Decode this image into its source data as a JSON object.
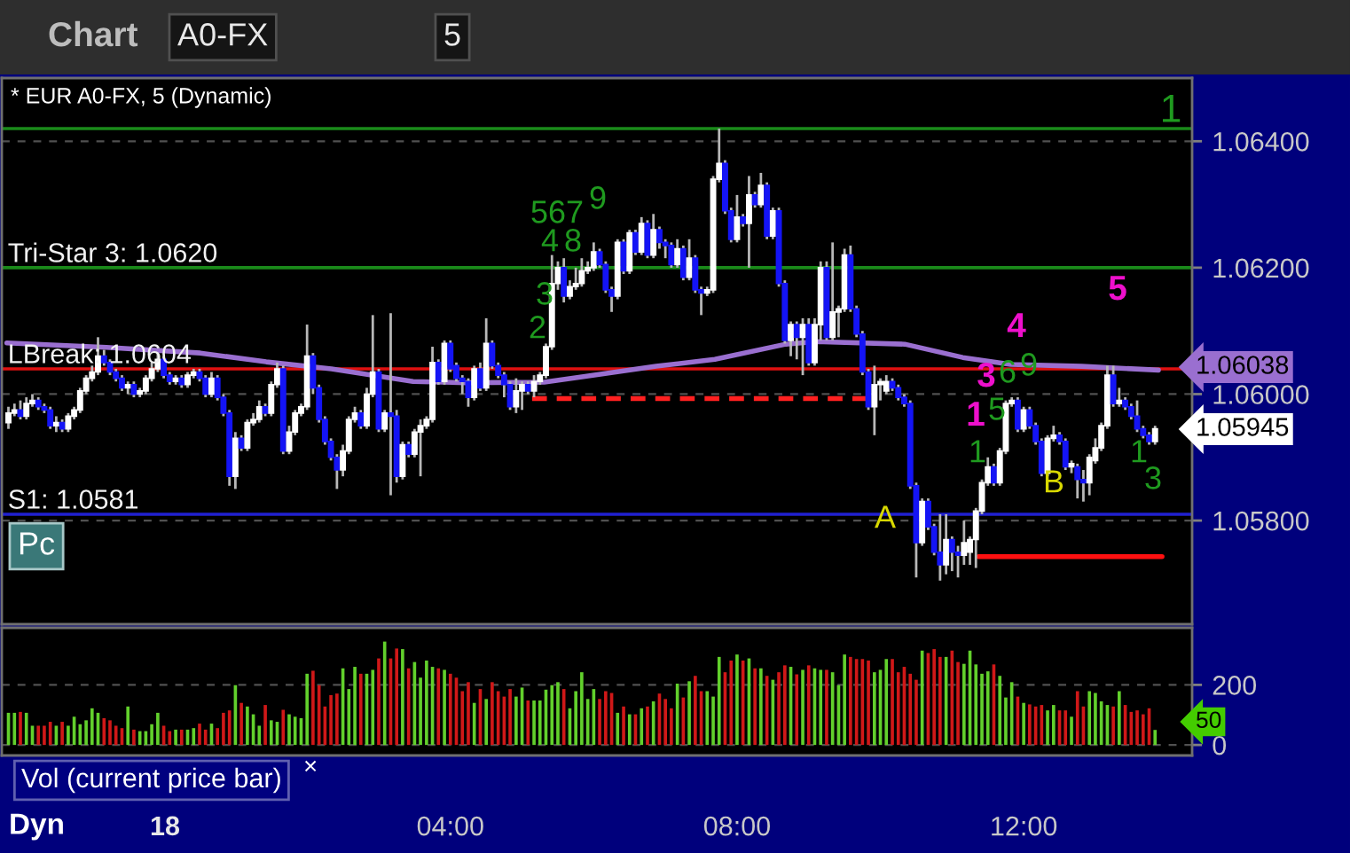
{
  "chart_data": [
    {
      "type": "candlestick",
      "title": "* EUR A0-FX, 5 (Dynamic)",
      "x": [
        -2.167,
        -2.083,
        -2,
        -1.917,
        -1.833,
        -1.75,
        -1.667,
        -1.583,
        -1.5,
        -1.417,
        -1.333,
        -1.25,
        -1.167,
        -1.083,
        -1,
        -0.917,
        -0.833,
        -0.75,
        -0.667,
        -0.583,
        -0.5,
        -0.417,
        -0.333,
        -0.25,
        -0.167,
        -0.083,
        0,
        0.083,
        0.167,
        0.25,
        0.333,
        0.417,
        0.5,
        0.583,
        0.667,
        0.75,
        0.833,
        0.917,
        1,
        1.083,
        1.167,
        1.25,
        1.333,
        1.417,
        1.5,
        1.583,
        1.667,
        1.75,
        1.833,
        1.917,
        2,
        2.083,
        2.167,
        2.25,
        2.333,
        2.417,
        2.5,
        2.583,
        2.667,
        2.75,
        2.833,
        2.917,
        3,
        3.083,
        3.167,
        3.25,
        3.333,
        3.417,
        3.5,
        3.583,
        3.667,
        3.75,
        3.833,
        3.917,
        4,
        4.083,
        4.167,
        4.25,
        4.333,
        4.417,
        4.5,
        4.583,
        4.667,
        4.75,
        4.833,
        4.917,
        5,
        5.083,
        5.167,
        5.25,
        5.333,
        5.417,
        5.5,
        5.583,
        5.667,
        5.75,
        5.833,
        5.917,
        6,
        6.083,
        6.167,
        6.25,
        6.333,
        6.417,
        6.5,
        6.583,
        6.667,
        6.75,
        6.833,
        6.917,
        7,
        7.083,
        7.167,
        7.25,
        7.333,
        7.417,
        7.5,
        7.583,
        7.667,
        7.75,
        7.833,
        7.917,
        8,
        8.083,
        8.167,
        8.25,
        8.333,
        8.417,
        8.5,
        8.583,
        8.667,
        8.75,
        8.833,
        8.917,
        9,
        9.083,
        9.167,
        9.25,
        9.333,
        9.417,
        9.5,
        9.583,
        9.667,
        9.75,
        9.833,
        9.917,
        10,
        10.083,
        10.167,
        10.25,
        10.333,
        10.417,
        10.5,
        10.583,
        10.667,
        10.75,
        10.833,
        10.917,
        11,
        11.083,
        11.167,
        11.25,
        11.333,
        11.417,
        11.5,
        11.583,
        11.667,
        11.75,
        11.833,
        11.917,
        12,
        12.083,
        12.167,
        12.25,
        12.333,
        12.417,
        12.5,
        12.583,
        12.667,
        12.75,
        12.833,
        12.917,
        13,
        13.083,
        13.167,
        13.25,
        13.333,
        13.417,
        13.5,
        13.583,
        13.667,
        13.75,
        13.833
      ],
      "ohlc": [
        [
          1.05955,
          1.0598,
          1.05945,
          1.0597
        ],
        [
          1.0597,
          1.05985,
          1.05965,
          1.05975
        ],
        [
          1.05975,
          1.0599,
          1.0596,
          1.05965
        ],
        [
          1.05965,
          1.05995,
          1.0596,
          1.05985
        ],
        [
          1.05985,
          1.06,
          1.0598,
          1.0599
        ],
        [
          1.0599,
          1.05995,
          1.05975,
          1.0598
        ],
        [
          1.0598,
          1.05985,
          1.0597,
          1.05975
        ],
        [
          1.05975,
          1.0598,
          1.05945,
          1.0595
        ],
        [
          1.0595,
          1.05965,
          1.0594,
          1.05955
        ],
        [
          1.05955,
          1.0596,
          1.0594,
          1.05945
        ],
        [
          1.05945,
          1.0597,
          1.0594,
          1.05965
        ],
        [
          1.05965,
          1.0598,
          1.0596,
          1.05975
        ],
        [
          1.05975,
          1.0601,
          1.0597,
          1.06005
        ],
        [
          1.06005,
          1.0603,
          1.06,
          1.06025
        ],
        [
          1.06025,
          1.06045,
          1.0602,
          1.06035
        ],
        [
          1.06035,
          1.0609,
          1.0603,
          1.0606
        ],
        [
          1.0606,
          1.0607,
          1.06045,
          1.0605
        ],
        [
          1.0605,
          1.06055,
          1.0603,
          1.06035
        ],
        [
          1.06035,
          1.0604,
          1.0602,
          1.06025
        ],
        [
          1.06025,
          1.0603,
          1.06005,
          1.0601
        ],
        [
          1.0601,
          1.0602,
          1.06,
          1.06015
        ],
        [
          1.06015,
          1.0602,
          1.05995,
          1.06
        ],
        [
          1.06,
          1.0601,
          1.05995,
          1.06005
        ],
        [
          1.06005,
          1.0603,
          1.06,
          1.06025
        ],
        [
          1.06025,
          1.0605,
          1.0602,
          1.0604
        ],
        [
          1.0604,
          1.06065,
          1.06035,
          1.06055
        ],
        [
          1.06055,
          1.0606,
          1.06025,
          1.0603
        ],
        [
          1.0603,
          1.06035,
          1.06015,
          1.0602
        ],
        [
          1.0602,
          1.0603,
          1.06015,
          1.06025
        ],
        [
          1.06025,
          1.0603,
          1.0601,
          1.06015
        ],
        [
          1.06015,
          1.06035,
          1.0601,
          1.0603
        ],
        [
          1.0603,
          1.0604,
          1.06025,
          1.06035
        ],
        [
          1.06035,
          1.0604,
          1.0602,
          1.06025
        ],
        [
          1.06025,
          1.0603,
          1.05995,
          1.06
        ],
        [
          1.06,
          1.06035,
          1.05995,
          1.06025
        ],
        [
          1.06025,
          1.0603,
          1.0599,
          1.05995
        ],
        [
          1.05995,
          1.06,
          1.05965,
          1.0597
        ],
        [
          1.0597,
          1.05975,
          1.05855,
          1.0587
        ],
        [
          1.0587,
          1.0594,
          1.0585,
          1.0593
        ],
        [
          1.0593,
          1.05935,
          1.0591,
          1.05915
        ],
        [
          1.05915,
          1.0596,
          1.0591,
          1.05955
        ],
        [
          1.05955,
          1.0597,
          1.0595,
          1.0596
        ],
        [
          1.0596,
          1.0599,
          1.05955,
          1.0598
        ],
        [
          1.0598,
          1.05985,
          1.05965,
          1.0597
        ],
        [
          1.0597,
          1.0602,
          1.05965,
          1.06015
        ],
        [
          1.06015,
          1.0605,
          1.0601,
          1.0604
        ],
        [
          1.0604,
          1.06045,
          1.05905,
          1.0591
        ],
        [
          1.0591,
          1.0595,
          1.05905,
          1.0594
        ],
        [
          1.0594,
          1.05975,
          1.05935,
          1.0597
        ],
        [
          1.0597,
          1.05985,
          1.05965,
          1.0598
        ],
        [
          1.0598,
          1.0611,
          1.05975,
          1.0606
        ],
        [
          1.0606,
          1.06065,
          1.06,
          1.0601
        ],
        [
          1.0601,
          1.06015,
          1.05955,
          1.0596
        ],
        [
          1.0596,
          1.05965,
          1.0592,
          1.05925
        ],
        [
          1.05925,
          1.0593,
          1.05895,
          1.059
        ],
        [
          1.059,
          1.05905,
          1.0585,
          1.0588
        ],
        [
          1.0588,
          1.0592,
          1.0587,
          1.0591
        ],
        [
          1.0591,
          1.05965,
          1.05905,
          1.0596
        ],
        [
          1.0596,
          1.0598,
          1.05955,
          1.0597
        ],
        [
          1.0597,
          1.05975,
          1.05945,
          1.0595
        ],
        [
          1.0595,
          1.0601,
          1.05945,
          1.06
        ],
        [
          1.06,
          1.06125,
          1.05995,
          1.06035
        ],
        [
          1.06035,
          1.0604,
          1.0594,
          1.05945
        ],
        [
          1.05945,
          1.05975,
          1.0594,
          1.0597
        ],
        [
          1.0597,
          1.06128,
          1.0584,
          1.05965
        ],
        [
          1.05965,
          1.05975,
          1.0586,
          1.0587
        ],
        [
          1.0587,
          1.05925,
          1.05865,
          1.0592
        ],
        [
          1.0592,
          1.05925,
          1.059,
          1.05905
        ],
        [
          1.05905,
          1.05945,
          1.059,
          1.0594
        ],
        [
          1.0594,
          1.0596,
          1.0587,
          1.0595
        ],
        [
          1.0595,
          1.05965,
          1.05945,
          1.0596
        ],
        [
          1.0596,
          1.06075,
          1.05955,
          1.0605
        ],
        [
          1.0605,
          1.06055,
          1.06015,
          1.0602
        ],
        [
          1.0602,
          1.06085,
          1.06015,
          1.0608
        ],
        [
          1.0608,
          1.06085,
          1.06035,
          1.0604
        ],
        [
          1.06045,
          1.0605,
          1.0602,
          1.06025
        ],
        [
          1.06025,
          1.0603,
          1.06,
          1.0602
        ],
        [
          1.0602,
          1.06025,
          1.0598,
          1.05995
        ],
        [
          1.05995,
          1.06045,
          1.0599,
          1.0604
        ],
        [
          1.0604,
          1.0605,
          1.06005,
          1.0601
        ],
        [
          1.0601,
          1.0612,
          1.06005,
          1.0608
        ],
        [
          1.0608,
          1.06085,
          1.0604,
          1.06045
        ],
        [
          1.06045,
          1.0605,
          1.06025,
          1.0603
        ],
        [
          1.0603,
          1.06035,
          1.05995,
          1.06015
        ],
        [
          1.06015,
          1.0602,
          1.05975,
          1.0598
        ],
        [
          1.0598,
          1.06025,
          1.0597,
          1.06005
        ],
        [
          1.06005,
          1.0602,
          1.05975,
          1.06015
        ],
        [
          1.06015,
          1.0602,
          1.06,
          1.06005
        ],
        [
          1.06005,
          1.0603,
          1.05995,
          1.0602
        ],
        [
          1.0602,
          1.06035,
          1.06015,
          1.0603
        ],
        [
          1.0603,
          1.0608,
          1.06025,
          1.06075
        ],
        [
          1.06075,
          1.0622,
          1.0607,
          1.06175
        ],
        [
          1.06175,
          1.0621,
          1.06165,
          1.062
        ],
        [
          1.062,
          1.06215,
          1.06145,
          1.06155
        ],
        [
          1.06155,
          1.0618,
          1.0615,
          1.0617
        ],
        [
          1.0617,
          1.062,
          1.06165,
          1.06175
        ],
        [
          1.06175,
          1.06215,
          1.0617,
          1.06195
        ],
        [
          1.06195,
          1.0621,
          1.0619,
          1.062
        ],
        [
          1.062,
          1.0624,
          1.06195,
          1.06225
        ],
        [
          1.06225,
          1.0623,
          1.062,
          1.06205
        ],
        [
          1.06205,
          1.0621,
          1.0616,
          1.06165
        ],
        [
          1.06165,
          1.0617,
          1.0613,
          1.06155
        ],
        [
          1.06155,
          1.06245,
          1.0615,
          1.0624
        ],
        [
          1.0624,
          1.06245,
          1.0619,
          1.06195
        ],
        [
          1.06195,
          1.0626,
          1.0619,
          1.06255
        ],
        [
          1.06255,
          1.0626,
          1.0622,
          1.06225
        ],
        [
          1.06225,
          1.0628,
          1.0622,
          1.0627
        ],
        [
          1.0627,
          1.06275,
          1.06215,
          1.0622
        ],
        [
          1.0622,
          1.06285,
          1.06215,
          1.0626
        ],
        [
          1.0626,
          1.06265,
          1.0623,
          1.0624
        ],
        [
          1.0624,
          1.06245,
          1.06215,
          1.06235
        ],
        [
          1.06235,
          1.0624,
          1.062,
          1.06205
        ],
        [
          1.06205,
          1.06245,
          1.062,
          1.0623
        ],
        [
          1.0623,
          1.06235,
          1.0618,
          1.06185
        ],
        [
          1.06185,
          1.06245,
          1.0618,
          1.06215
        ],
        [
          1.06215,
          1.0622,
          1.0616,
          1.06165
        ],
        [
          1.06165,
          1.0617,
          1.06125,
          1.0616
        ],
        [
          1.0616,
          1.0617,
          1.06155,
          1.06165
        ],
        [
          1.06165,
          1.06345,
          1.0616,
          1.0634
        ],
        [
          1.0634,
          1.0642,
          1.06335,
          1.06365
        ],
        [
          1.06365,
          1.0637,
          1.06285,
          1.0629
        ],
        [
          1.0629,
          1.06295,
          1.0624,
          1.06245
        ],
        [
          1.06245,
          1.06315,
          1.0624,
          1.0628
        ],
        [
          1.0628,
          1.06285,
          1.06265,
          1.0627
        ],
        [
          1.0627,
          1.06345,
          1.062,
          1.06315
        ],
        [
          1.06315,
          1.0632,
          1.06295,
          1.063
        ],
        [
          1.063,
          1.0635,
          1.06295,
          1.0633
        ],
        [
          1.0633,
          1.06335,
          1.06245,
          1.0625
        ],
        [
          1.0625,
          1.06295,
          1.06245,
          1.0629
        ],
        [
          1.0629,
          1.06295,
          1.0617,
          1.06175
        ],
        [
          1.06175,
          1.0618,
          1.0608,
          1.06085
        ],
        [
          1.06085,
          1.06115,
          1.0606,
          1.0611
        ],
        [
          1.0611,
          1.06115,
          1.06055,
          1.0609
        ],
        [
          1.0609,
          1.0612,
          1.0603,
          1.0611
        ],
        [
          1.0611,
          1.0612,
          1.06045,
          1.0605
        ],
        [
          1.0605,
          1.0612,
          1.06045,
          1.0611
        ],
        [
          1.0611,
          1.0621,
          1.06085,
          1.062
        ],
        [
          1.062,
          1.0621,
          1.06085,
          1.0609
        ],
        [
          1.0609,
          1.0624,
          1.06085,
          1.0613
        ],
        [
          1.0613,
          1.0614,
          1.0609,
          1.06135
        ],
        [
          1.06135,
          1.0623,
          1.0613,
          1.0622
        ],
        [
          1.0622,
          1.06235,
          1.0613,
          1.06135
        ],
        [
          1.06135,
          1.0614,
          1.0609,
          1.06095
        ],
        [
          1.06095,
          1.061,
          1.0603,
          1.06035
        ],
        [
          1.06035,
          1.0604,
          1.05975,
          1.0598
        ],
        [
          1.0598,
          1.06045,
          1.05935,
          1.06015
        ],
        [
          1.06015,
          1.06025,
          1.0599,
          1.0602
        ],
        [
          1.06005,
          1.0603,
          1.06,
          1.0602
        ],
        [
          1.0602,
          1.06025,
          1.06005,
          1.0601
        ],
        [
          1.0601,
          1.06015,
          1.0599,
          1.05995
        ],
        [
          1.05995,
          1.06,
          1.0598,
          1.05985
        ],
        [
          1.05985,
          1.0599,
          1.0585,
          1.05855
        ],
        [
          1.05855,
          1.0586,
          1.0571,
          1.05765
        ],
        [
          1.05765,
          1.05835,
          1.0576,
          1.0583
        ],
        [
          1.0583,
          1.05835,
          1.05785,
          1.0579
        ],
        [
          1.0579,
          1.05795,
          1.05745,
          1.0575
        ],
        [
          1.0575,
          1.0581,
          1.05705,
          1.0573
        ],
        [
          1.0573,
          1.0581,
          1.05715,
          1.0577
        ],
        [
          1.0577,
          1.05775,
          1.0572,
          1.0575
        ],
        [
          1.0575,
          1.0576,
          1.0571,
          1.05745
        ],
        [
          1.05745,
          1.058,
          1.0573,
          1.05765
        ],
        [
          1.0575,
          1.05775,
          1.0573,
          1.0577
        ],
        [
          1.0577,
          1.0582,
          1.05725,
          1.05815
        ],
        [
          1.05815,
          1.05865,
          1.0581,
          1.0586
        ],
        [
          1.0586,
          1.059,
          1.05855,
          1.05885
        ],
        [
          1.05885,
          1.0589,
          1.05855,
          1.0586
        ],
        [
          1.0586,
          1.05915,
          1.05855,
          1.0591
        ],
        [
          1.0591,
          1.0599,
          1.05905,
          1.05985
        ],
        [
          1.05985,
          1.05995,
          1.0598,
          1.0599
        ],
        [
          1.0599,
          1.05995,
          1.0594,
          1.05945
        ],
        [
          1.05945,
          1.0598,
          1.0594,
          1.05975
        ],
        [
          1.05975,
          1.0598,
          1.05945,
          1.0595
        ],
        [
          1.0595,
          1.05955,
          1.0592,
          1.05925
        ],
        [
          1.05925,
          1.0593,
          1.0587,
          1.05875
        ],
        [
          1.05875,
          1.05935,
          1.0587,
          1.0593
        ],
        [
          1.0593,
          1.0595,
          1.05925,
          1.05935
        ],
        [
          1.05935,
          1.0594,
          1.0592,
          1.05925
        ],
        [
          1.05925,
          1.0593,
          1.0588,
          1.05885
        ],
        [
          1.05885,
          1.05895,
          1.05875,
          1.0589
        ],
        [
          1.05885,
          1.0589,
          1.05835,
          1.05865
        ],
        [
          1.05865,
          1.0588,
          1.0583,
          1.0586
        ],
        [
          1.0586,
          1.05905,
          1.0584,
          1.059
        ],
        [
          1.05895,
          1.0593,
          1.0589,
          1.05915
        ],
        [
          1.05915,
          1.05955,
          1.0591,
          1.0595
        ],
        [
          1.0595,
          1.06045,
          1.05945,
          1.0603
        ],
        [
          1.0603,
          1.06045,
          1.0598,
          1.05985
        ],
        [
          1.05985,
          1.0601,
          1.0598,
          1.0599
        ],
        [
          1.0599,
          1.05995,
          1.05975,
          1.0598
        ],
        [
          1.0598,
          1.05985,
          1.0596,
          1.05965
        ],
        [
          1.05965,
          1.0599,
          1.0594,
          1.05945
        ],
        [
          1.05945,
          1.0595,
          1.0593,
          1.05935
        ],
        [
          1.05935,
          1.0594,
          1.0592,
          1.05925
        ],
        [
          1.05925,
          1.0595,
          1.0592,
          1.05945
        ]
      ],
      "colors": [
        "#ffffff",
        "#ffffff",
        "#1414f5",
        "#ffffff",
        "#ffffff",
        "#1414f5",
        "#1414f5",
        "#1414f5",
        "#ffffff",
        "#1414f5",
        "#ffffff",
        "#ffffff",
        "#ffffff",
        "#ffffff",
        "#ffffff",
        "#ffffff",
        "#1414f5",
        "#1414f5",
        "#1414f5",
        "#1414f5",
        "#ffffff",
        "#1414f5",
        "#ffffff",
        "#ffffff",
        "#ffffff",
        "#ffffff",
        "#1414f5",
        "#1414f5",
        "#ffffff",
        "#1414f5",
        "#ffffff",
        "#ffffff",
        "#1414f5",
        "#1414f5",
        "#ffffff",
        "#1414f5",
        "#1414f5",
        "#1414f5",
        "#ffffff",
        "#1414f5",
        "#ffffff",
        "#ffffff",
        "#ffffff",
        "#1414f5",
        "#ffffff",
        "#ffffff",
        "#1414f5",
        "#ffffff",
        "#ffffff",
        "#ffffff",
        "#ffffff",
        "#1414f5",
        "#1414f5",
        "#1414f5",
        "#1414f5",
        "#1414f5",
        "#ffffff",
        "#ffffff",
        "#ffffff",
        "#1414f5",
        "#ffffff",
        "#ffffff",
        "#1414f5",
        "#ffffff",
        "#1414f5",
        "#1414f5",
        "#ffffff",
        "#1414f5",
        "#ffffff",
        "#ffffff",
        "#ffffff",
        "#ffffff",
        "#1414f5",
        "#ffffff",
        "#1414f5",
        "#1414f5",
        "#1414f5",
        "#1414f5",
        "#ffffff",
        "#1414f5",
        "#ffffff",
        "#1414f5",
        "#1414f5",
        "#1414f5",
        "#1414f5",
        "#ffffff",
        "#ffffff",
        "#1414f5",
        "#ffffff",
        "#ffffff",
        "#ffffff",
        "#ffffff",
        "#ffffff",
        "#1414f5",
        "#ffffff",
        "#ffffff",
        "#ffffff",
        "#ffffff",
        "#ffffff",
        "#1414f5",
        "#1414f5",
        "#1414f5",
        "#ffffff",
        "#1414f5",
        "#ffffff",
        "#1414f5",
        "#ffffff",
        "#1414f5",
        "#ffffff",
        "#1414f5",
        "#1414f5",
        "#1414f5",
        "#ffffff",
        "#1414f5",
        "#ffffff",
        "#1414f5",
        "#1414f5",
        "#ffffff",
        "#ffffff",
        "#ffffff",
        "#1414f5",
        "#1414f5",
        "#ffffff",
        "#1414f5",
        "#ffffff",
        "#1414f5",
        "#ffffff",
        "#1414f5",
        "#ffffff",
        "#1414f5",
        "#1414f5",
        "#ffffff",
        "#1414f5",
        "#ffffff",
        "#1414f5",
        "#ffffff",
        "#ffffff",
        "#1414f5",
        "#ffffff",
        "#ffffff",
        "#ffffff",
        "#1414f5",
        "#1414f5",
        "#1414f5",
        "#1414f5",
        "#ffffff",
        "#ffffff",
        "#ffffff",
        "#1414f5",
        "#1414f5",
        "#1414f5",
        "#1414f5",
        "#1414f5",
        "#ffffff",
        "#1414f5",
        "#1414f5",
        "#1414f5",
        "#ffffff",
        "#1414f5",
        "#1414f5",
        "#ffffff",
        "#ffffff",
        "#ffffff",
        "#ffffff",
        "#ffffff",
        "#1414f5",
        "#ffffff",
        "#ffffff",
        "#ffffff",
        "#1414f5",
        "#ffffff",
        "#1414f5",
        "#1414f5",
        "#1414f5",
        "#ffffff",
        "#ffffff",
        "#1414f5",
        "#1414f5",
        "#ffffff",
        "#1414f5",
        "#1414f5",
        "#ffffff",
        "#ffffff",
        "#ffffff",
        "#ffffff",
        "#1414f5",
        "#ffffff",
        "#1414f5",
        "#1414f5",
        "#1414f5",
        "#1414f5",
        "#1414f5",
        "#ffffff"
      ],
      "series": [
        {
          "type": "line",
          "color": "#9a6fd0",
          "x": [
            -2.19,
            -0.8,
            0.51,
            1.43,
            2.34,
            3.48,
            4.23,
            5.31,
            5.88,
            6.87,
            7.69,
            8.68,
            9.1,
            10.34,
            11.15,
            11.82,
            12.81,
            13.88
          ],
          "values": [
            1.06081,
            1.06074,
            1.06065,
            1.06051,
            1.0604,
            1.0602,
            1.06018,
            1.06019,
            1.06028,
            1.06044,
            1.06055,
            1.06079,
            1.06083,
            1.06079,
            1.06058,
            1.06047,
            1.06044,
            1.06038
          ]
        },
        {
          "type": "line",
          "color": "#ff2020",
          "line_style": "dashed",
          "x": [
            5.14,
            9.84
          ],
          "values": [
            1.05993,
            1.05993
          ]
        },
        {
          "type": "line",
          "color": "#ff1010",
          "x": [
            11.37,
            13.93
          ],
          "values": [
            1.05743,
            1.05743
          ]
        }
      ],
      "ref_lines": [
        {
          "axis": "y",
          "value": 1.0642,
          "color": "#1a8a1a"
        },
        {
          "axis": "y",
          "value": 1.062,
          "label": "Tri-Star 3: 1.0620",
          "color": "#1a8a1a"
        },
        {
          "axis": "y",
          "value": 1.0604,
          "label": "LBreak: 1.0604",
          "color": "#e01010"
        },
        {
          "axis": "y",
          "value": 1.0581,
          "label": "S1: 1.0581",
          "color": "#2020d0"
        }
      ],
      "annotations": [
        "Chart",
        "A0-FX",
        "5",
        "Pc",
        "1",
        "A",
        "B",
        "1",
        "3",
        "4",
        "5",
        "2",
        "3",
        "4",
        "5",
        "6",
        "7",
        "8",
        "9",
        "1",
        "5",
        "6",
        "9",
        "1",
        "3",
        "1.06038",
        "1.05945"
      ],
      "xlim": [
        -2.26,
        14.35
      ],
      "ylim": [
        1.05636,
        1.065
      ],
      "yticks": [
        {
          "value": 1.058,
          "label": "1.05800"
        },
        {
          "value": 1.06,
          "label": "1.06000"
        },
        {
          "value": 1.062,
          "label": "1.06200"
        },
        {
          "value": 1.064,
          "label": "1.06400"
        }
      ],
      "grid": "y",
      "tick_labels": "y"
    },
    {
      "type": "bar",
      "title": "Vol (current price bar)",
      "x": [
        -2.167,
        -2.083,
        -2,
        -1.917,
        -1.833,
        -1.75,
        -1.667,
        -1.583,
        -1.5,
        -1.417,
        -1.333,
        -1.25,
        -1.167,
        -1.083,
        -1,
        -0.917,
        -0.833,
        -0.75,
        -0.667,
        -0.583,
        -0.5,
        -0.417,
        -0.333,
        -0.25,
        -0.167,
        -0.083,
        0,
        0.083,
        0.167,
        0.25,
        0.333,
        0.417,
        0.5,
        0.583,
        0.667,
        0.75,
        0.833,
        0.917,
        1,
        1.083,
        1.167,
        1.25,
        1.333,
        1.417,
        1.5,
        1.583,
        1.667,
        1.75,
        1.833,
        1.917,
        2,
        2.083,
        2.167,
        2.25,
        2.333,
        2.417,
        2.5,
        2.583,
        2.667,
        2.75,
        2.833,
        2.917,
        3,
        3.083,
        3.167,
        3.25,
        3.333,
        3.417,
        3.5,
        3.583,
        3.667,
        3.75,
        3.833,
        3.917,
        4,
        4.083,
        4.167,
        4.25,
        4.333,
        4.417,
        4.5,
        4.583,
        4.667,
        4.75,
        4.833,
        4.917,
        5,
        5.083,
        5.167,
        5.25,
        5.333,
        5.417,
        5.5,
        5.583,
        5.667,
        5.75,
        5.833,
        5.917,
        6,
        6.083,
        6.167,
        6.25,
        6.333,
        6.417,
        6.5,
        6.583,
        6.667,
        6.75,
        6.833,
        6.917,
        7,
        7.083,
        7.167,
        7.25,
        7.333,
        7.417,
        7.5,
        7.583,
        7.667,
        7.75,
        7.833,
        7.917,
        8,
        8.083,
        8.167,
        8.25,
        8.333,
        8.417,
        8.5,
        8.583,
        8.667,
        8.75,
        8.833,
        8.917,
        9,
        9.083,
        9.167,
        9.25,
        9.333,
        9.417,
        9.5,
        9.583,
        9.667,
        9.75,
        9.833,
        9.917,
        10,
        10.083,
        10.167,
        10.25,
        10.333,
        10.417,
        10.5,
        10.583,
        10.667,
        10.75,
        10.833,
        10.917,
        11,
        11.083,
        11.167,
        11.25,
        11.333,
        11.417,
        11.5,
        11.583,
        11.667,
        11.75,
        11.833,
        11.917,
        12,
        12.083,
        12.167,
        12.25,
        12.333,
        12.417,
        12.5,
        12.583,
        12.667,
        12.75,
        12.833,
        12.917,
        13,
        13.083,
        13.167,
        13.25,
        13.333,
        13.417,
        13.5,
        13.583,
        13.667,
        13.75,
        13.833
      ],
      "values": [
        107,
        107,
        110,
        107,
        64,
        64,
        64,
        77,
        64,
        77,
        64,
        94,
        69,
        82,
        122,
        107,
        89,
        82,
        64,
        56,
        128,
        51,
        46,
        46,
        69,
        107,
        64,
        46,
        51,
        51,
        51,
        56,
        71,
        51,
        71,
        56,
        107,
        115,
        199,
        140,
        128,
        102,
        64,
        133,
        82,
        77,
        117,
        102,
        94,
        89,
        237,
        247,
        199,
        128,
        166,
        171,
        255,
        186,
        260,
        237,
        237,
        250,
        288,
        344,
        288,
        321,
        319,
        255,
        276,
        224,
        281,
        260,
        255,
        250,
        237,
        224,
        179,
        209,
        140,
        186,
        153,
        209,
        179,
        161,
        186,
        161,
        191,
        148,
        148,
        148,
        184,
        199,
        209,
        186,
        122,
        179,
        242,
        153,
        186,
        153,
        179,
        173,
        107,
        128,
        102,
        102,
        122,
        128,
        145,
        171,
        153,
        122,
        204,
        158,
        212,
        230,
        179,
        179,
        161,
        293,
        242,
        281,
        301,
        281,
        288,
        255,
        255,
        230,
        217,
        242,
        265,
        260,
        235,
        250,
        265,
        255,
        250,
        250,
        242,
        199,
        301,
        293,
        286,
        286,
        281,
        242,
        250,
        286,
        286,
        242,
        260,
        237,
        217,
        314,
        306,
        319,
        293,
        293,
        314,
        276,
        270,
        314,
        268,
        237,
        245,
        268,
        230,
        158,
        209,
        161,
        140,
        135,
        128,
        133,
        115,
        133,
        115,
        115,
        94,
        179,
        128,
        179,
        173,
        145,
        133,
        128,
        179,
        133,
        110,
        115,
        102,
        122,
        50
      ],
      "colors": [
        "#62d02c",
        "#62d02c",
        "#d01818",
        "#62d02c",
        "#62d02c",
        "#d01818",
        "#d01818",
        "#d01818",
        "#62d02c",
        "#d01818",
        "#62d02c",
        "#62d02c",
        "#62d02c",
        "#62d02c",
        "#62d02c",
        "#62d02c",
        "#d01818",
        "#d01818",
        "#d01818",
        "#d01818",
        "#62d02c",
        "#d01818",
        "#62d02c",
        "#62d02c",
        "#62d02c",
        "#62d02c",
        "#d01818",
        "#d01818",
        "#62d02c",
        "#d01818",
        "#62d02c",
        "#62d02c",
        "#d01818",
        "#d01818",
        "#62d02c",
        "#d01818",
        "#d01818",
        "#d01818",
        "#62d02c",
        "#d01818",
        "#62d02c",
        "#62d02c",
        "#62d02c",
        "#d01818",
        "#62d02c",
        "#62d02c",
        "#d01818",
        "#62d02c",
        "#62d02c",
        "#62d02c",
        "#62d02c",
        "#d01818",
        "#d01818",
        "#d01818",
        "#d01818",
        "#d01818",
        "#62d02c",
        "#62d02c",
        "#62d02c",
        "#d01818",
        "#62d02c",
        "#62d02c",
        "#d01818",
        "#62d02c",
        "#d01818",
        "#d01818",
        "#62d02c",
        "#d01818",
        "#62d02c",
        "#62d02c",
        "#62d02c",
        "#62d02c",
        "#d01818",
        "#62d02c",
        "#d01818",
        "#d01818",
        "#d01818",
        "#d01818",
        "#62d02c",
        "#d01818",
        "#62d02c",
        "#d01818",
        "#d01818",
        "#d01818",
        "#d01818",
        "#62d02c",
        "#62d02c",
        "#d01818",
        "#62d02c",
        "#62d02c",
        "#62d02c",
        "#62d02c",
        "#62d02c",
        "#d01818",
        "#62d02c",
        "#62d02c",
        "#62d02c",
        "#62d02c",
        "#62d02c",
        "#d01818",
        "#d01818",
        "#d01818",
        "#62d02c",
        "#d01818",
        "#62d02c",
        "#d01818",
        "#62d02c",
        "#d01818",
        "#62d02c",
        "#d01818",
        "#d01818",
        "#d01818",
        "#62d02c",
        "#d01818",
        "#62d02c",
        "#d01818",
        "#d01818",
        "#62d02c",
        "#62d02c",
        "#62d02c",
        "#d01818",
        "#d01818",
        "#62d02c",
        "#d01818",
        "#62d02c",
        "#d01818",
        "#62d02c",
        "#d01818",
        "#62d02c",
        "#d01818",
        "#d01818",
        "#62d02c",
        "#d01818",
        "#62d02c",
        "#d01818",
        "#62d02c",
        "#62d02c",
        "#d01818",
        "#62d02c",
        "#62d02c",
        "#62d02c",
        "#d01818",
        "#d01818",
        "#d01818",
        "#d01818",
        "#62d02c",
        "#62d02c",
        "#62d02c",
        "#d01818",
        "#d01818",
        "#d01818",
        "#d01818",
        "#d01818",
        "#62d02c",
        "#d01818",
        "#d01818",
        "#d01818",
        "#62d02c",
        "#d01818",
        "#d01818",
        "#62d02c",
        "#62d02c",
        "#62d02c",
        "#62d02c",
        "#62d02c",
        "#d01818",
        "#62d02c",
        "#62d02c",
        "#62d02c",
        "#d01818",
        "#62d02c",
        "#d01818",
        "#d01818",
        "#d01818",
        "#62d02c",
        "#62d02c",
        "#d01818",
        "#d01818",
        "#62d02c",
        "#d01818",
        "#d01818",
        "#62d02c",
        "#62d02c",
        "#62d02c",
        "#62d02c",
        "#d01818",
        "#62d02c",
        "#d01818",
        "#d01818",
        "#d01818",
        "#d01818",
        "#d01818",
        "#62d02c"
      ],
      "annotations": [
        "Dyn",
        "×",
        "50",
        "18"
      ],
      "xlim": [
        -2.26,
        14.35
      ],
      "xticks": [
        {
          "value": 4,
          "label": "04:00"
        },
        {
          "value": 8,
          "label": "08:00"
        },
        {
          "value": 12,
          "label": "12:00"
        }
      ],
      "ylim": [
        -35,
        390
      ],
      "yticks": [
        0,
        200
      ],
      "grid": "y"
    }
  ]
}
